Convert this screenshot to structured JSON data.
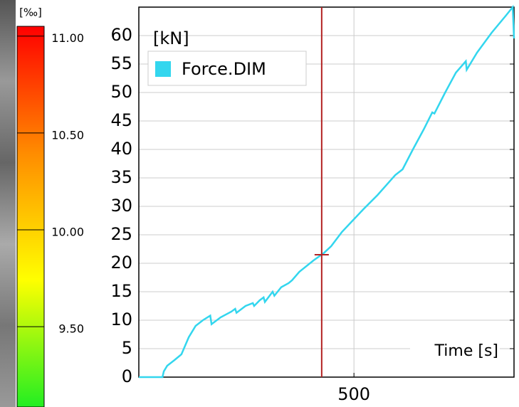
{
  "colorbar": {
    "unit": "[‰]",
    "lim": [
      9.1,
      11.065
    ],
    "ticks": [
      {
        "value": 11,
        "label": "11.00"
      },
      {
        "value": 10.5,
        "label": "10.50"
      },
      {
        "value": 10,
        "label": "10.00"
      },
      {
        "value": 9.5,
        "label": "9.50"
      }
    ],
    "colors": [
      "#ff0000",
      "#ff8c00",
      "#ffff00",
      "#22ee22"
    ]
  },
  "chart_data": {
    "type": "line",
    "y_label": "[kN]",
    "x_label": "Time [s]",
    "x": [
      0,
      55,
      58,
      66,
      83,
      99,
      116,
      132,
      149,
      166,
      169,
      190,
      215,
      224,
      227,
      248,
      265,
      268,
      281,
      290,
      293,
      306,
      311,
      315,
      331,
      348,
      356,
      373,
      406,
      430,
      447,
      472,
      497,
      522,
      555,
      596,
      613,
      637,
      662,
      682,
      687,
      712,
      737,
      760,
      762,
      786,
      820,
      853,
      869,
      872
    ],
    "series": [
      {
        "name": "Force.DIM",
        "color": "#33d6ee",
        "values": [
          0,
          0,
          1,
          2,
          3,
          4,
          7,
          9,
          10,
          10.8,
          9.3,
          10.5,
          11.5,
          12,
          11.3,
          12.5,
          13,
          12.5,
          13.5,
          14,
          13.2,
          14.5,
          15,
          14.3,
          15.8,
          16.5,
          17,
          18.5,
          20.5,
          21.8,
          23,
          25.5,
          27.5,
          29.5,
          32,
          35.5,
          36.5,
          40,
          43.5,
          46.5,
          46.3,
          50,
          53.5,
          55.5,
          54,
          57,
          60.5,
          63.5,
          65,
          59.5
        ]
      }
    ],
    "xlim": [
      0,
      872
    ],
    "ylim": [
      0,
      65
    ],
    "xticks": [
      500
    ],
    "yticks": [
      0,
      5,
      10,
      15,
      20,
      25,
      30,
      35,
      40,
      45,
      50,
      55,
      60
    ],
    "grid": true,
    "legend": "upper left",
    "cursor": {
      "x": 425,
      "y": 21.5,
      "color": "#b22222"
    }
  }
}
